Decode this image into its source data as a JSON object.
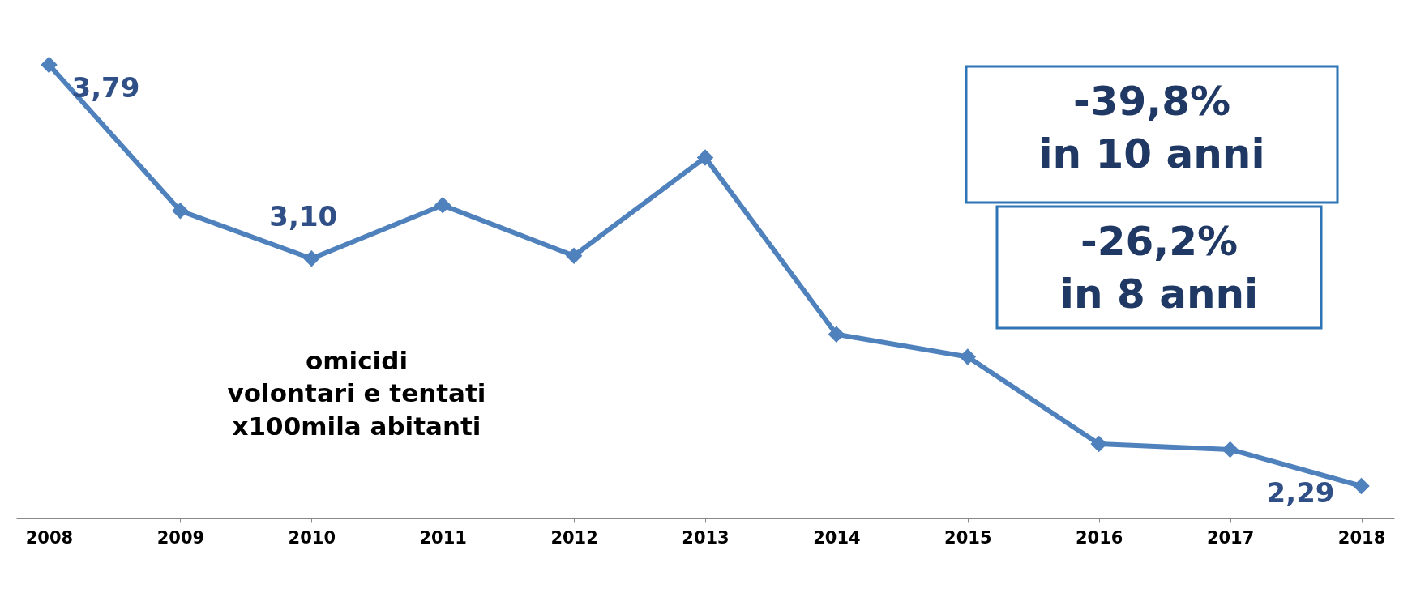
{
  "chart_data": {
    "type": "line",
    "categories": [
      "2008",
      "2009",
      "2010",
      "2011",
      "2012",
      "2013",
      "2014",
      "2015",
      "2016",
      "2017",
      "2018"
    ],
    "series": [
      {
        "color": "#4f81bd",
        "values": [
          3.79,
          3.27,
          3.1,
          3.29,
          3.11,
          3.46,
          2.83,
          2.75,
          2.44,
          2.42,
          2.29
        ],
        "value_labels": [
          "3,79",
          null,
          "3,10",
          null,
          null,
          null,
          null,
          null,
          null,
          null,
          "2,29"
        ]
      }
    ],
    "tick_labels": "x",
    "grid": false,
    "marker": "diamond",
    "line_style": "solid",
    "annotations": [
      "-39,8%\nin 10 anni",
      "-26,2%\nin 8 anni",
      "omicidi\nvolontari e tentati\nx100mila abitanti"
    ]
  }
}
